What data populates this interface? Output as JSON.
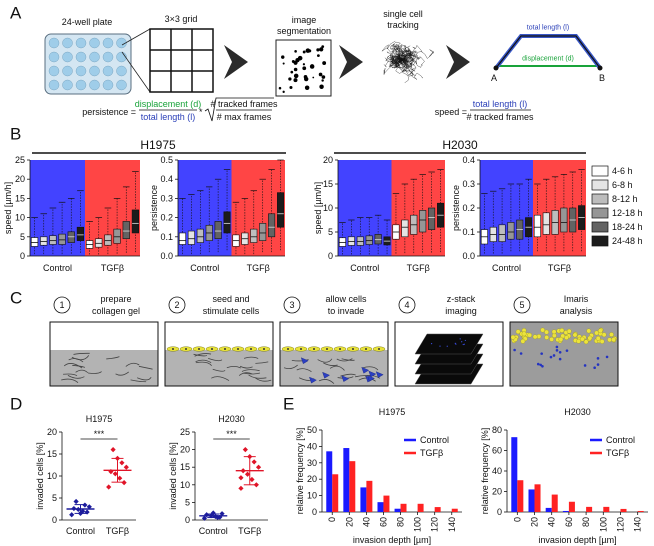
{
  "panel_labels": [
    "A",
    "B",
    "C",
    "D",
    "E"
  ],
  "panel_a": {
    "steps": [
      [
        "24-well plate"
      ],
      [
        "3×3 grid"
      ],
      [
        "image",
        "segmentation"
      ],
      [
        "single cell",
        "tracking"
      ]
    ],
    "track": {
      "total": "total length (l)",
      "displacement": "displacement (d)",
      "start": "A",
      "end": "B"
    },
    "persistence_formula": {
      "lhs": "persistence =",
      "numerator": "displacement (d)",
      "denominator": "total length (l)",
      "times": "*",
      "root_numerator": "# tracked frames",
      "root_denominator": "# max frames"
    },
    "speed_formula": {
      "lhs": "speed =",
      "numerator": "total length (l)",
      "denominator": "# tracked frames"
    }
  },
  "panel_b": {
    "cell_lines": [
      "H1975",
      "H2030"
    ],
    "time_windows": [
      {
        "name": "4-6 h",
        "color": "#ffffff"
      },
      {
        "name": "6-8 h",
        "color": "#e4e4e4"
      },
      {
        "name": "8-12 h",
        "color": "#bdbdbd"
      },
      {
        "name": "12-18 h",
        "color": "#969696"
      },
      {
        "name": "18-24 h",
        "color": "#636363"
      },
      {
        "name": "24-48 h",
        "color": "#1c1c1c"
      }
    ]
  },
  "panel_c": {
    "steps": [
      {
        "number": "1",
        "lines": [
          "prepare",
          "collagen gel"
        ]
      },
      {
        "number": "2",
        "lines": [
          "seed and",
          "stimulate cells"
        ]
      },
      {
        "number": "3",
        "lines": [
          "allow cells",
          "to invade"
        ]
      },
      {
        "number": "4",
        "lines": [
          "z-stack",
          "imaging"
        ]
      },
      {
        "number": "5",
        "lines": [
          "Imaris",
          "analysis"
        ]
      }
    ]
  },
  "chart_data": [
    {
      "type": "box",
      "ylabel": "speed [µm/h]",
      "ylim": [
        0,
        25
      ],
      "yticks": [
        0,
        5,
        10,
        15,
        20,
        25
      ],
      "categories": [
        "Control",
        "TGFβ"
      ],
      "category_colors": [
        "#4343ff",
        "#ff4545"
      ],
      "boxes": [
        [
          [
            0.5,
            2.5,
            3.5,
            4.8,
            10
          ],
          [
            0.5,
            2.8,
            3.8,
            5,
            11
          ],
          [
            0.5,
            3,
            4,
            5.3,
            12.5
          ],
          [
            0.5,
            3,
            4.2,
            5.7,
            14
          ],
          [
            0.6,
            3.5,
            5,
            6.3,
            15
          ],
          [
            0.8,
            4,
            5.5,
            7.5,
            17
          ]
        ],
        [
          [
            0.4,
            2,
            3,
            4,
            9
          ],
          [
            0.4,
            2.3,
            3.3,
            4.5,
            10
          ],
          [
            0.5,
            2.8,
            4,
            5.5,
            12.5
          ],
          [
            0.6,
            3.3,
            5,
            7,
            15
          ],
          [
            0.8,
            4.5,
            6.5,
            9,
            18
          ],
          [
            1,
            6,
            8.5,
            12,
            22
          ]
        ]
      ]
    },
    {
      "type": "box",
      "ylabel": "persistence",
      "ylim": [
        0,
        0.5
      ],
      "yticks": [
        {
          "value": 0,
          "label": "0.0"
        },
        0.1,
        0.2,
        0.3,
        0.4,
        0.5
      ],
      "categories": [
        "Control",
        "TGFβ"
      ],
      "category_colors": [
        "#4343ff",
        "#ff4545"
      ],
      "boxes": [
        [
          [
            0.01,
            0.06,
            0.08,
            0.12,
            0.3
          ],
          [
            0.01,
            0.06,
            0.09,
            0.13,
            0.32
          ],
          [
            0.01,
            0.07,
            0.1,
            0.14,
            0.34
          ],
          [
            0.02,
            0.08,
            0.12,
            0.16,
            0.36
          ],
          [
            0.02,
            0.09,
            0.13,
            0.18,
            0.4
          ],
          [
            0.03,
            0.12,
            0.17,
            0.23,
            0.45
          ]
        ],
        [
          [
            0.01,
            0.05,
            0.08,
            0.11,
            0.28
          ],
          [
            0.01,
            0.06,
            0.09,
            0.12,
            0.3
          ],
          [
            0.01,
            0.07,
            0.1,
            0.14,
            0.34
          ],
          [
            0.02,
            0.08,
            0.12,
            0.17,
            0.4
          ],
          [
            0.02,
            0.1,
            0.15,
            0.22,
            0.45
          ],
          [
            0.03,
            0.15,
            0.22,
            0.33,
            0.5
          ]
        ]
      ]
    },
    {
      "type": "box",
      "ylabel": "speed [µm/h]",
      "ylim": [
        0,
        20
      ],
      "yticks": [
        0,
        5,
        10,
        15,
        20
      ],
      "categories": [
        "Control",
        "TGFβ"
      ],
      "category_colors": [
        "#4343ff",
        "#ff4545"
      ],
      "boxes": [
        [
          [
            0.3,
            2,
            2.8,
            3.8,
            7
          ],
          [
            0.3,
            2.2,
            3,
            4,
            7.5
          ],
          [
            0.3,
            2.2,
            3,
            4,
            8
          ],
          [
            0.3,
            2.4,
            3.2,
            4.2,
            8
          ],
          [
            0.4,
            2.5,
            3.4,
            4.5,
            8.5
          ],
          [
            0.4,
            2.3,
            3.1,
            4,
            7.5
          ]
        ],
        [
          [
            0.5,
            3.5,
            5,
            6.5,
            13
          ],
          [
            0.6,
            4,
            6,
            7.5,
            15
          ],
          [
            0.6,
            4.5,
            6.5,
            8.5,
            16
          ],
          [
            0.7,
            5,
            7.5,
            9.5,
            17
          ],
          [
            0.7,
            5.5,
            8,
            10,
            17.5
          ],
          [
            0.8,
            6,
            8.5,
            11,
            18
          ]
        ]
      ]
    },
    {
      "type": "box",
      "ylabel": "persistence",
      "ylim": [
        0,
        0.4
      ],
      "yticks": [
        {
          "value": 0,
          "label": "0.0"
        },
        0.1,
        0.2,
        0.3,
        0.4
      ],
      "categories": [
        "Control",
        "TGFβ"
      ],
      "category_colors": [
        "#4343ff",
        "#ff4545"
      ],
      "boxes": [
        [
          [
            0.01,
            0.05,
            0.08,
            0.11,
            0.26
          ],
          [
            0.01,
            0.06,
            0.09,
            0.12,
            0.27
          ],
          [
            0.01,
            0.06,
            0.09,
            0.13,
            0.28
          ],
          [
            0.02,
            0.07,
            0.1,
            0.14,
            0.3
          ],
          [
            0.02,
            0.07,
            0.11,
            0.15,
            0.3
          ],
          [
            0.02,
            0.08,
            0.12,
            0.16,
            0.32
          ]
        ],
        [
          [
            0.02,
            0.08,
            0.12,
            0.17,
            0.3
          ],
          [
            0.02,
            0.09,
            0.13,
            0.18,
            0.32
          ],
          [
            0.02,
            0.09,
            0.14,
            0.19,
            0.33
          ],
          [
            0.02,
            0.1,
            0.14,
            0.2,
            0.34
          ],
          [
            0.02,
            0.1,
            0.15,
            0.2,
            0.35
          ],
          [
            0.02,
            0.11,
            0.16,
            0.21,
            0.36
          ]
        ]
      ]
    },
    {
      "type": "dot",
      "title": "H1975",
      "ylabel": "invaded cells [%]",
      "ylim": [
        0,
        20
      ],
      "yticks": [
        0,
        5,
        10,
        15,
        20
      ],
      "categories": [
        "Control",
        "TGFβ"
      ],
      "colors": [
        "#1c1c9c",
        "#e01428"
      ],
      "points": [
        [
          1.2,
          1.8,
          2,
          2.4,
          2.6,
          3,
          3.4,
          1.5,
          4.2
        ],
        [
          7.5,
          8.5,
          9.5,
          10.5,
          11,
          12,
          13,
          14,
          16
        ]
      ],
      "means": [
        2.5,
        11.3
      ],
      "sds": [
        1,
        2.7
      ],
      "significance": "***"
    },
    {
      "type": "dot",
      "title": "H2030",
      "ylabel": "invaded cells [%]",
      "ylim": [
        0,
        25
      ],
      "yticks": [
        0,
        5,
        10,
        15,
        20,
        25
      ],
      "categories": [
        "Control",
        "TGFβ"
      ],
      "colors": [
        "#1c1c9c",
        "#e01428"
      ],
      "points": [
        [
          0.5,
          0.8,
          1,
          1.2,
          1.5,
          1.8,
          0.7,
          2
        ],
        [
          9,
          10,
          11.5,
          13,
          14,
          15,
          16.5,
          18,
          20,
          12
        ]
      ],
      "means": [
        1.2,
        14
      ],
      "sds": [
        0.5,
        4
      ],
      "significance": "***"
    },
    {
      "type": "bar",
      "title": "H1975",
      "xlabel": "invasion depth [µm]",
      "ylabel": "relative frequency [%]",
      "x": [
        0,
        20,
        40,
        60,
        80,
        100,
        120,
        140
      ],
      "xlim": [
        -12,
        152
      ],
      "xticks": [
        0,
        20,
        40,
        60,
        80,
        100,
        120,
        140
      ],
      "ylim": [
        0,
        50
      ],
      "yticks": [
        0,
        10,
        20,
        30,
        40,
        50
      ],
      "legend": "upper right",
      "series": [
        {
          "name": "Control",
          "color": "#1a1aff",
          "values": [
            37,
            39,
            15,
            6,
            2,
            0,
            0,
            0
          ]
        },
        {
          "name": "TGFβ",
          "color": "#ff2222",
          "values": [
            23,
            31,
            19,
            10,
            5,
            5,
            3,
            2
          ]
        }
      ]
    },
    {
      "type": "bar",
      "title": "H2030",
      "xlabel": "invasion depth [µm]",
      "ylabel": "relative frequency [%]",
      "x": [
        0,
        20,
        40,
        60,
        80,
        100,
        120,
        140
      ],
      "xlim": [
        -12,
        152
      ],
      "xticks": [
        0,
        20,
        40,
        60,
        80,
        100,
        120,
        140
      ],
      "ylim": [
        0,
        80
      ],
      "yticks": [
        0,
        20,
        40,
        60,
        80
      ],
      "legend": "upper right",
      "series": [
        {
          "name": "Control",
          "color": "#1a1aff",
          "values": [
            73,
            22,
            4,
            1,
            0,
            0,
            0,
            0
          ]
        },
        {
          "name": "TGFβ",
          "color": "#ff2222",
          "values": [
            31,
            27,
            17,
            10,
            5,
            5,
            3,
            1
          ]
        }
      ]
    }
  ]
}
